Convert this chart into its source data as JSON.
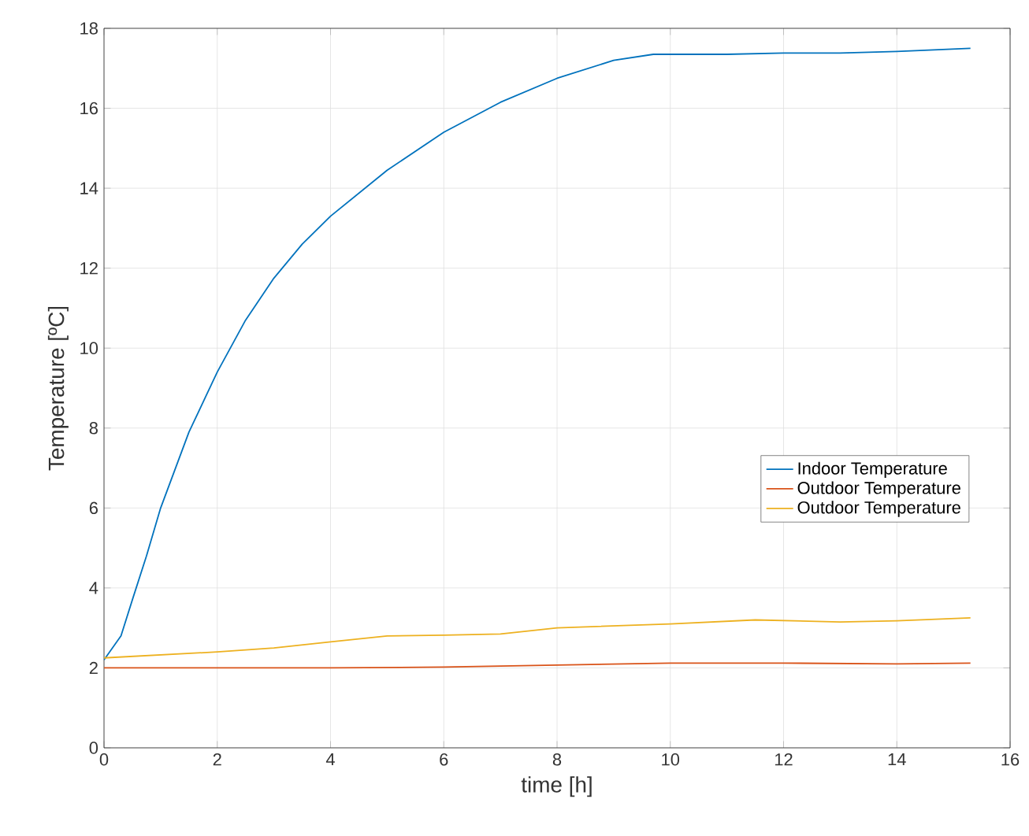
{
  "chart_data": {
    "type": "line",
    "xlabel": "time [h]",
    "ylabel": "Temperature [ºC]",
    "xlim": [
      0,
      16
    ],
    "ylim": [
      0,
      18
    ],
    "xticks": [
      0,
      2,
      4,
      6,
      8,
      10,
      12,
      14,
      16
    ],
    "yticks": [
      0,
      2,
      4,
      6,
      8,
      10,
      12,
      14,
      16,
      18
    ],
    "grid": true,
    "legend": "right",
    "line_style": "solid",
    "series": [
      {
        "name": "Indoor Temperature",
        "color": "#0072bd",
        "x": [
          0,
          0.3,
          0.5,
          0.75,
          1,
          1.5,
          2,
          2.5,
          3,
          3.5,
          4,
          5,
          6,
          7,
          8,
          9,
          9.7,
          10,
          11,
          12,
          13,
          14,
          15.3
        ],
        "values": [
          2.2,
          2.8,
          3.7,
          4.8,
          6.0,
          7.9,
          9.4,
          10.7,
          11.75,
          12.6,
          13.3,
          14.45,
          15.4,
          16.15,
          16.75,
          17.2,
          17.35,
          17.35,
          17.35,
          17.38,
          17.38,
          17.42,
          17.5
        ]
      },
      {
        "name": "Outdoor Temperature",
        "color": "#d95319",
        "x": [
          0,
          4,
          6,
          8,
          10,
          12,
          14,
          15.3
        ],
        "values": [
          2.0,
          2.0,
          2.02,
          2.07,
          2.12,
          2.12,
          2.1,
          2.12
        ]
      },
      {
        "name": "Outdoor Temperature",
        "color": "#edb120",
        "x": [
          0,
          2,
          3,
          4,
          5,
          6,
          7,
          8,
          10,
          11.5,
          13,
          14,
          15.3
        ],
        "values": [
          2.25,
          2.4,
          2.5,
          2.65,
          2.8,
          2.82,
          2.85,
          3.0,
          3.1,
          3.2,
          3.15,
          3.18,
          3.25
        ]
      }
    ]
  }
}
